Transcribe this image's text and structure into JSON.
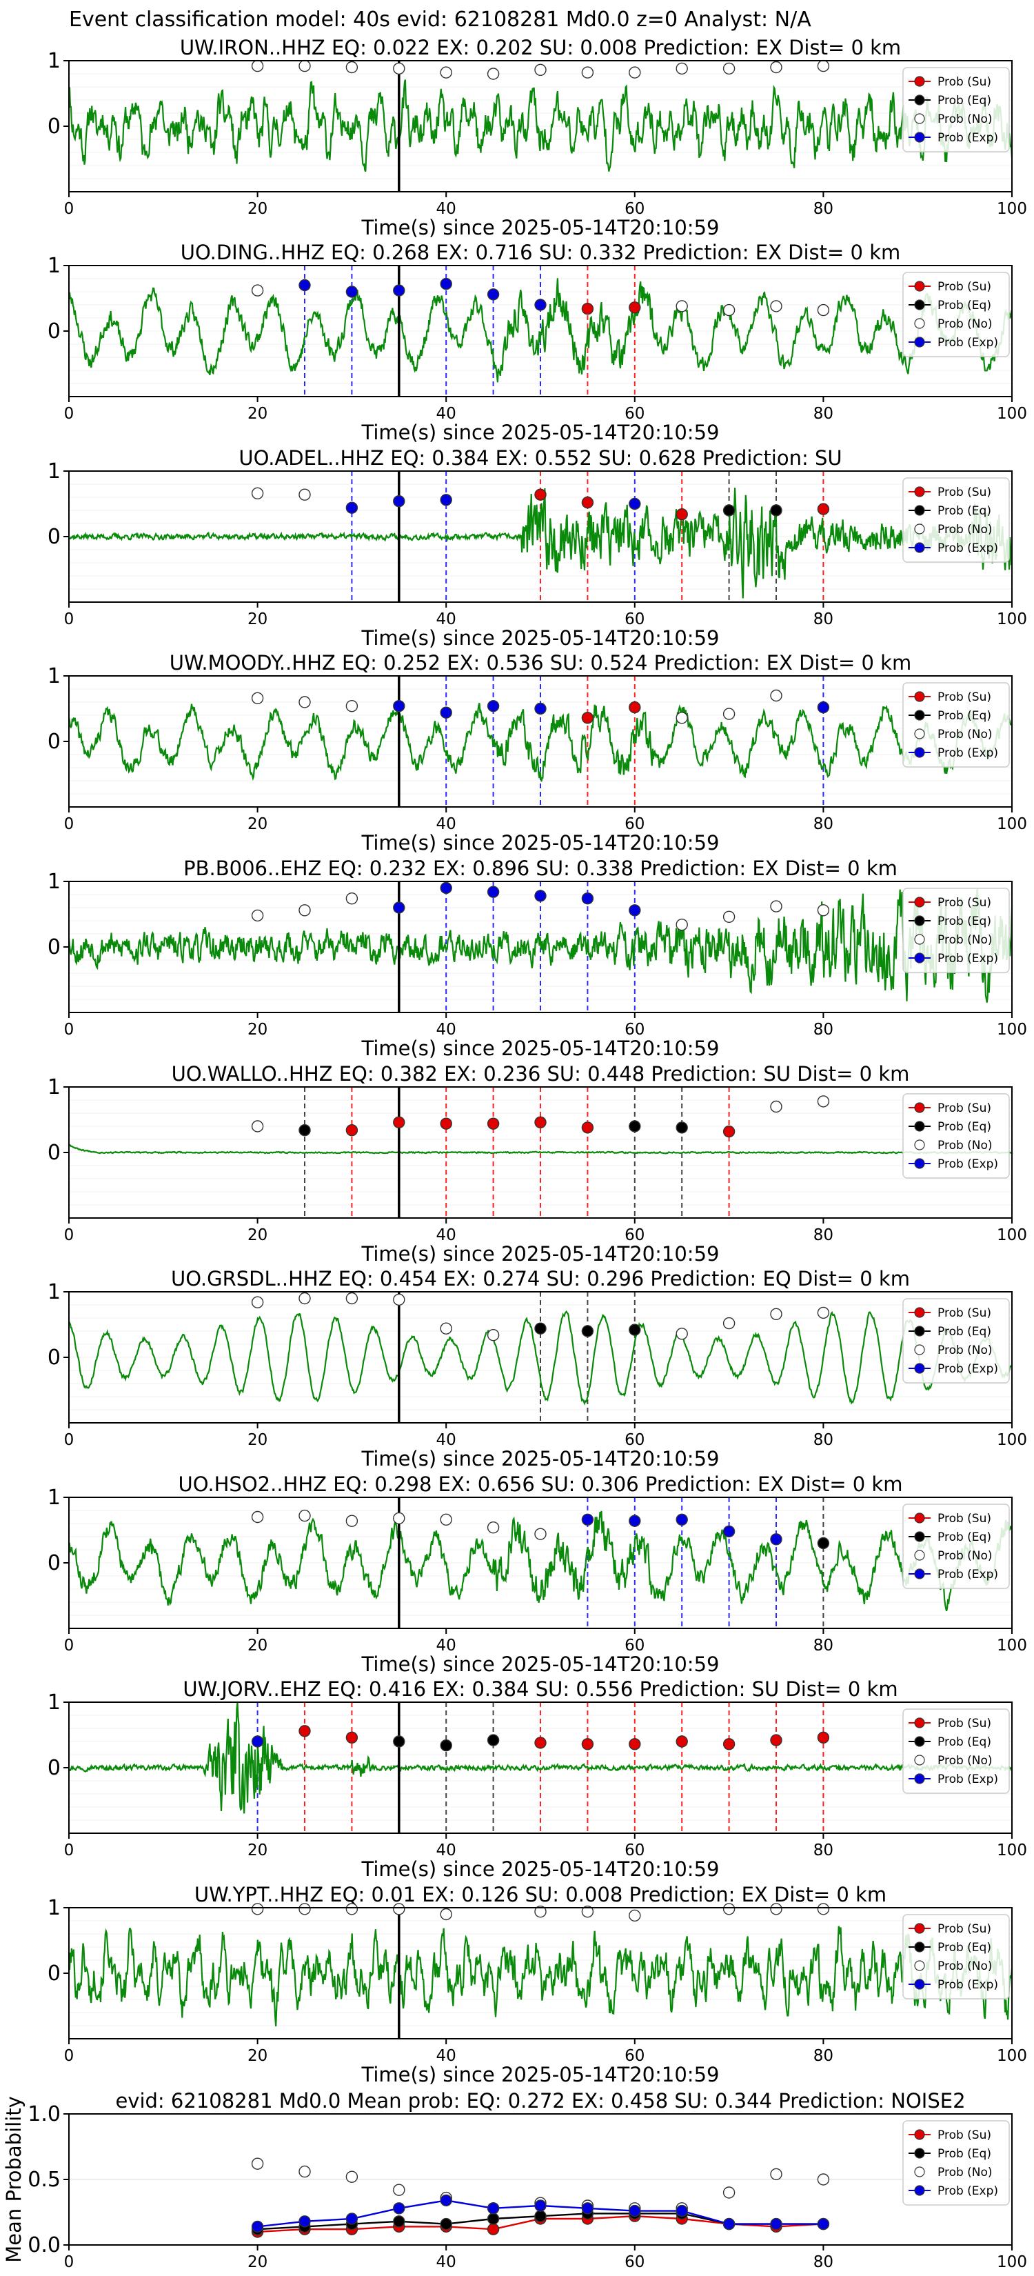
{
  "figure_title": "Event classification model: 40s evid: 62108281 Md0.0 z=0 Analyst: N/A",
  "legend_labels": [
    "Prob (Su)",
    "Prob (Eq)",
    "Prob (No)",
    "Prob (Exp)"
  ],
  "colors": {
    "su": "#e00000",
    "eq": "#000000",
    "no": "#ffffff",
    "exp": "#0000dd",
    "trace": "#0a8a0a"
  },
  "chart_data": [
    {
      "type": "line",
      "station": "UW.IRON..HHZ",
      "title": "UW.IRON..HHZ   EQ: 0.022  EX: 0.202  SU: 0.008   Prediction: EX    Dist= 0 km",
      "xlabel": "Time(s) since 2025-05-14T20:10:59",
      "xlim": [
        0,
        100
      ],
      "ylim": [
        -1,
        1
      ],
      "x_ticks": [
        0,
        20,
        40,
        60,
        80,
        100
      ],
      "y_ticks": [
        0,
        1
      ],
      "trace": {
        "amplitude": 0.72,
        "style": "broadband",
        "onset": 0,
        "seed": 11
      },
      "marker": 35,
      "probs": [
        {
          "t": 20,
          "c": "no",
          "p": 0.92
        },
        {
          "t": 25,
          "c": "no",
          "p": 0.92
        },
        {
          "t": 30,
          "c": "no",
          "p": 0.9
        },
        {
          "t": 35,
          "c": "no",
          "p": 0.88
        },
        {
          "t": 40,
          "c": "no",
          "p": 0.82
        },
        {
          "t": 45,
          "c": "no",
          "p": 0.8
        },
        {
          "t": 50,
          "c": "no",
          "p": 0.86
        },
        {
          "t": 55,
          "c": "no",
          "p": 0.82
        },
        {
          "t": 60,
          "c": "no",
          "p": 0.82
        },
        {
          "t": 65,
          "c": "no",
          "p": 0.88
        },
        {
          "t": 70,
          "c": "no",
          "p": 0.88
        },
        {
          "t": 75,
          "c": "no",
          "p": 0.9
        },
        {
          "t": 80,
          "c": "no",
          "p": 0.92
        }
      ]
    },
    {
      "type": "line",
      "station": "UO.DING..HHZ",
      "title": "UO.DING..HHZ   EQ: 0.268  EX: 0.716  SU: 0.332   Prediction: EX    Dist= 0 km",
      "xlabel": "Time(s) since 2025-05-14T20:10:59",
      "xlim": [
        0,
        100
      ],
      "ylim": [
        -1,
        1
      ],
      "x_ticks": [
        0,
        20,
        40,
        60,
        80,
        100
      ],
      "y_ticks": [
        0,
        1
      ],
      "trace": {
        "amplitude": 0.68,
        "style": "oscillating",
        "onset": 0,
        "seed": 23
      },
      "marker": 35,
      "probs": [
        {
          "t": 20,
          "c": "no",
          "p": 0.62
        },
        {
          "t": 25,
          "c": "exp",
          "p": 0.7
        },
        {
          "t": 30,
          "c": "exp",
          "p": 0.6
        },
        {
          "t": 35,
          "c": "exp",
          "p": 0.62
        },
        {
          "t": 40,
          "c": "exp",
          "p": 0.72
        },
        {
          "t": 45,
          "c": "exp",
          "p": 0.56
        },
        {
          "t": 50,
          "c": "exp",
          "p": 0.4
        },
        {
          "t": 55,
          "c": "su",
          "p": 0.34
        },
        {
          "t": 60,
          "c": "su",
          "p": 0.36
        },
        {
          "t": 65,
          "c": "no",
          "p": 0.38
        },
        {
          "t": 70,
          "c": "no",
          "p": 0.32
        },
        {
          "t": 75,
          "c": "no",
          "p": 0.38
        },
        {
          "t": 80,
          "c": "no",
          "p": 0.32
        }
      ]
    },
    {
      "type": "line",
      "station": "UO.ADEL..HHZ",
      "title": "UO.ADEL..HHZ   EQ: 0.384  EX: 0.552  SU: 0.628   Prediction: SU",
      "xlabel": "Time(s) since 2025-05-14T20:10:59",
      "xlim": [
        0,
        100
      ],
      "ylim": [
        -1,
        1
      ],
      "x_ticks": [
        0,
        20,
        40,
        60,
        80,
        100
      ],
      "y_ticks": [
        0,
        1
      ],
      "trace": {
        "amplitude": 0.9,
        "style": "event",
        "onset": 48,
        "seed": 37
      },
      "marker": 35,
      "probs": [
        {
          "t": 20,
          "c": "no",
          "p": 0.66
        },
        {
          "t": 25,
          "c": "no",
          "p": 0.64
        },
        {
          "t": 30,
          "c": "exp",
          "p": 0.44
        },
        {
          "t": 35,
          "c": "exp",
          "p": 0.54
        },
        {
          "t": 40,
          "c": "exp",
          "p": 0.56
        },
        {
          "t": 50,
          "c": "su",
          "p": 0.64
        },
        {
          "t": 55,
          "c": "su",
          "p": 0.52
        },
        {
          "t": 60,
          "c": "exp",
          "p": 0.5
        },
        {
          "t": 65,
          "c": "su",
          "p": 0.34
        },
        {
          "t": 70,
          "c": "eq",
          "p": 0.4
        },
        {
          "t": 75,
          "c": "eq",
          "p": 0.4
        },
        {
          "t": 80,
          "c": "su",
          "p": 0.42
        }
      ]
    },
    {
      "type": "line",
      "station": "UW.MOODY..HHZ",
      "title": "UW.MOODY..HHZ   EQ: 0.252  EX: 0.536  SU: 0.524   Prediction: EX    Dist= 0 km",
      "xlabel": "Time(s) since 2025-05-14T20:10:59",
      "xlim": [
        0,
        100
      ],
      "ylim": [
        -1,
        1
      ],
      "x_ticks": [
        0,
        20,
        40,
        60,
        80,
        100
      ],
      "y_ticks": [
        0,
        1
      ],
      "trace": {
        "amplitude": 0.6,
        "style": "oscillating",
        "onset": 0,
        "seed": 41
      },
      "marker": 35,
      "probs": [
        {
          "t": 20,
          "c": "no",
          "p": 0.66
        },
        {
          "t": 25,
          "c": "no",
          "p": 0.6
        },
        {
          "t": 30,
          "c": "no",
          "p": 0.54
        },
        {
          "t": 35,
          "c": "exp",
          "p": 0.54
        },
        {
          "t": 40,
          "c": "exp",
          "p": 0.44
        },
        {
          "t": 45,
          "c": "exp",
          "p": 0.54
        },
        {
          "t": 50,
          "c": "exp",
          "p": 0.5
        },
        {
          "t": 55,
          "c": "su",
          "p": 0.36
        },
        {
          "t": 60,
          "c": "su",
          "p": 0.52
        },
        {
          "t": 65,
          "c": "no",
          "p": 0.36
        },
        {
          "t": 70,
          "c": "no",
          "p": 0.42
        },
        {
          "t": 75,
          "c": "no",
          "p": 0.7
        },
        {
          "t": 80,
          "c": "exp",
          "p": 0.52
        }
      ]
    },
    {
      "type": "line",
      "station": "PB.B006..EHZ",
      "title": "PB.B006..EHZ   EQ: 0.232  EX: 0.896  SU: 0.338   Prediction: EX    Dist= 0 km",
      "xlabel": "Time(s) since 2025-05-14T20:10:59",
      "xlim": [
        0,
        100
      ],
      "ylim": [
        -1,
        1
      ],
      "x_ticks": [
        0,
        20,
        40,
        60,
        80,
        100
      ],
      "y_ticks": [
        0,
        1
      ],
      "trace": {
        "amplitude": 0.95,
        "style": "growing",
        "onset": 0,
        "seed": 53
      },
      "marker": 35,
      "probs": [
        {
          "t": 20,
          "c": "no",
          "p": 0.48
        },
        {
          "t": 25,
          "c": "no",
          "p": 0.56
        },
        {
          "t": 30,
          "c": "no",
          "p": 0.74
        },
        {
          "t": 35,
          "c": "exp",
          "p": 0.6
        },
        {
          "t": 40,
          "c": "exp",
          "p": 0.9
        },
        {
          "t": 45,
          "c": "exp",
          "p": 0.84
        },
        {
          "t": 50,
          "c": "exp",
          "p": 0.78
        },
        {
          "t": 55,
          "c": "exp",
          "p": 0.74
        },
        {
          "t": 60,
          "c": "exp",
          "p": 0.56
        },
        {
          "t": 65,
          "c": "no",
          "p": 0.34
        },
        {
          "t": 70,
          "c": "no",
          "p": 0.46
        },
        {
          "t": 75,
          "c": "no",
          "p": 0.62
        },
        {
          "t": 80,
          "c": "no",
          "p": 0.56
        }
      ]
    },
    {
      "type": "line",
      "station": "UO.WALLO..HHZ",
      "title": "UO.WALLO..HHZ   EQ: 0.382  EX: 0.236  SU: 0.448   Prediction: SU    Dist= 0 km",
      "xlabel": "Time(s) since 2025-05-14T20:10:59",
      "xlim": [
        0,
        100
      ],
      "ylim": [
        -1,
        1
      ],
      "x_ticks": [
        0,
        20,
        40,
        60,
        80,
        100
      ],
      "y_ticks": [
        0,
        1
      ],
      "trace": {
        "amplitude": 0.14,
        "style": "quiet_transient",
        "onset": 0,
        "seed": 67
      },
      "marker": 35,
      "probs": [
        {
          "t": 20,
          "c": "no",
          "p": 0.4
        },
        {
          "t": 25,
          "c": "eq",
          "p": 0.34
        },
        {
          "t": 30,
          "c": "su",
          "p": 0.34
        },
        {
          "t": 35,
          "c": "su",
          "p": 0.46
        },
        {
          "t": 40,
          "c": "su",
          "p": 0.44
        },
        {
          "t": 45,
          "c": "su",
          "p": 0.44
        },
        {
          "t": 50,
          "c": "su",
          "p": 0.46
        },
        {
          "t": 55,
          "c": "su",
          "p": 0.38
        },
        {
          "t": 60,
          "c": "eq",
          "p": 0.4
        },
        {
          "t": 65,
          "c": "eq",
          "p": 0.38
        },
        {
          "t": 70,
          "c": "su",
          "p": 0.32
        },
        {
          "t": 75,
          "c": "no",
          "p": 0.7
        },
        {
          "t": 80,
          "c": "no",
          "p": 0.78
        }
      ]
    },
    {
      "type": "line",
      "station": "UO.GRSDL..HHZ",
      "title": "UO.GRSDL..HHZ   EQ: 0.454  EX: 0.274  SU: 0.296   Prediction: EQ    Dist= 0 km",
      "xlabel": "Time(s) since 2025-05-14T20:10:59",
      "xlim": [
        0,
        100
      ],
      "ylim": [
        -1,
        1
      ],
      "x_ticks": [
        0,
        20,
        40,
        60,
        80,
        100
      ],
      "y_ticks": [
        0,
        1
      ],
      "trace": {
        "amplitude": 0.85,
        "style": "smooth",
        "onset": 0,
        "seed": 79
      },
      "marker": 35,
      "probs": [
        {
          "t": 20,
          "c": "no",
          "p": 0.84
        },
        {
          "t": 25,
          "c": "no",
          "p": 0.9
        },
        {
          "t": 30,
          "c": "no",
          "p": 0.9
        },
        {
          "t": 35,
          "c": "no",
          "p": 0.88
        },
        {
          "t": 40,
          "c": "no",
          "p": 0.44
        },
        {
          "t": 45,
          "c": "no",
          "p": 0.34
        },
        {
          "t": 50,
          "c": "eq",
          "p": 0.44
        },
        {
          "t": 55,
          "c": "eq",
          "p": 0.4
        },
        {
          "t": 60,
          "c": "eq",
          "p": 0.42
        },
        {
          "t": 65,
          "c": "no",
          "p": 0.36
        },
        {
          "t": 70,
          "c": "no",
          "p": 0.52
        },
        {
          "t": 75,
          "c": "no",
          "p": 0.66
        },
        {
          "t": 80,
          "c": "no",
          "p": 0.68
        }
      ]
    },
    {
      "type": "line",
      "station": "UO.HSO2..HHZ",
      "title": "UO.HSO2..HHZ   EQ: 0.298  EX: 0.656  SU: 0.306   Prediction: EX    Dist= 0 km",
      "xlabel": "Time(s) since 2025-05-14T20:10:59",
      "xlim": [
        0,
        100
      ],
      "ylim": [
        -1,
        1
      ],
      "x_ticks": [
        0,
        20,
        40,
        60,
        80,
        100
      ],
      "y_ticks": [
        0,
        1
      ],
      "trace": {
        "amplitude": 0.7,
        "style": "oscillating",
        "onset": 0,
        "seed": 83
      },
      "marker": 35,
      "probs": [
        {
          "t": 20,
          "c": "no",
          "p": 0.7
        },
        {
          "t": 25,
          "c": "no",
          "p": 0.72
        },
        {
          "t": 30,
          "c": "no",
          "p": 0.64
        },
        {
          "t": 35,
          "c": "no",
          "p": 0.68
        },
        {
          "t": 40,
          "c": "no",
          "p": 0.66
        },
        {
          "t": 45,
          "c": "no",
          "p": 0.54
        },
        {
          "t": 50,
          "c": "no",
          "p": 0.44
        },
        {
          "t": 55,
          "c": "exp",
          "p": 0.66
        },
        {
          "t": 60,
          "c": "exp",
          "p": 0.64
        },
        {
          "t": 65,
          "c": "exp",
          "p": 0.66
        },
        {
          "t": 70,
          "c": "exp",
          "p": 0.48
        },
        {
          "t": 75,
          "c": "exp",
          "p": 0.36
        },
        {
          "t": 80,
          "c": "eq",
          "p": 0.3
        }
      ]
    },
    {
      "type": "line",
      "station": "UW.JORV..EHZ",
      "title": "UW.JORV..EHZ   EQ: 0.416  EX: 0.384  SU: 0.556   Prediction: SU    Dist= 0 km",
      "xlabel": "Time(s) since 2025-05-14T20:10:59",
      "xlim": [
        0,
        100
      ],
      "ylim": [
        -1,
        1
      ],
      "x_ticks": [
        0,
        20,
        40,
        60,
        80,
        100
      ],
      "y_ticks": [
        0,
        1
      ],
      "trace": {
        "amplitude": 0.9,
        "style": "burst",
        "onset": 14,
        "seed": 97
      },
      "marker": 35,
      "probs": [
        {
          "t": 20,
          "c": "exp",
          "p": 0.4
        },
        {
          "t": 25,
          "c": "su",
          "p": 0.56
        },
        {
          "t": 30,
          "c": "su",
          "p": 0.46
        },
        {
          "t": 35,
          "c": "eq",
          "p": 0.4
        },
        {
          "t": 40,
          "c": "eq",
          "p": 0.34
        },
        {
          "t": 45,
          "c": "eq",
          "p": 0.42
        },
        {
          "t": 50,
          "c": "su",
          "p": 0.38
        },
        {
          "t": 55,
          "c": "su",
          "p": 0.36
        },
        {
          "t": 60,
          "c": "su",
          "p": 0.36
        },
        {
          "t": 65,
          "c": "su",
          "p": 0.4
        },
        {
          "t": 70,
          "c": "su",
          "p": 0.36
        },
        {
          "t": 75,
          "c": "su",
          "p": 0.42
        },
        {
          "t": 80,
          "c": "su",
          "p": 0.46
        }
      ]
    },
    {
      "type": "line",
      "station": "UW.YPT..HHZ",
      "title": "UW.YPT..HHZ   EQ: 0.01  EX: 0.126  SU: 0.008   Prediction: EX    Dist= 0 km",
      "xlabel": "Time(s) since 2025-05-14T20:10:59",
      "xlim": [
        0,
        100
      ],
      "ylim": [
        -1,
        1
      ],
      "x_ticks": [
        0,
        20,
        40,
        60,
        80,
        100
      ],
      "y_ticks": [
        0,
        1
      ],
      "trace": {
        "amplitude": 0.8,
        "style": "broadband",
        "onset": 0,
        "seed": 101
      },
      "marker": 35,
      "probs": [
        {
          "t": 20,
          "c": "no",
          "p": 0.98
        },
        {
          "t": 25,
          "c": "no",
          "p": 0.98
        },
        {
          "t": 30,
          "c": "no",
          "p": 0.98
        },
        {
          "t": 35,
          "c": "no",
          "p": 0.98
        },
        {
          "t": 40,
          "c": "no",
          "p": 0.9
        },
        {
          "t": 50,
          "c": "no",
          "p": 0.94
        },
        {
          "t": 55,
          "c": "no",
          "p": 0.94
        },
        {
          "t": 60,
          "c": "no",
          "p": 0.88
        },
        {
          "t": 70,
          "c": "no",
          "p": 0.98
        },
        {
          "t": 75,
          "c": "no",
          "p": 0.98
        },
        {
          "t": 80,
          "c": "no",
          "p": 0.98
        }
      ]
    },
    {
      "type": "line",
      "station": "mean",
      "title": "evid: 62108281  Md0.0   Mean prob:   EQ: 0.272  EX: 0.458  SU: 0.344   Prediction: NOISE2",
      "ylabel": "Mean Probability",
      "xlim": [
        0,
        100
      ],
      "ylim": [
        0,
        1
      ],
      "x_ticks": [
        0,
        20,
        40,
        60,
        80,
        100
      ],
      "y_ticks": [
        0.0,
        0.5,
        1.0
      ],
      "y_tick_labels": [
        "0.0",
        "0.5",
        "1.0"
      ],
      "x": [
        20,
        25,
        30,
        35,
        40,
        45,
        50,
        55,
        60,
        65,
        70,
        75,
        80
      ],
      "series": [
        {
          "name": "Prob (Su)",
          "c": "su",
          "values": [
            0.1,
            0.12,
            0.12,
            0.14,
            0.14,
            0.12,
            0.2,
            0.2,
            0.22,
            0.2,
            0.16,
            0.14,
            0.16
          ]
        },
        {
          "name": "Prob (Eq)",
          "c": "eq",
          "values": [
            0.12,
            0.14,
            0.16,
            0.18,
            0.16,
            0.2,
            0.22,
            0.24,
            0.24,
            0.24,
            0.16,
            0.16,
            0.16
          ]
        },
        {
          "name": "Prob (No)",
          "c": "no",
          "values": [
            0.62,
            0.56,
            0.52,
            0.42,
            0.36,
            0.28,
            0.32,
            0.3,
            0.28,
            0.28,
            0.4,
            0.54,
            0.5
          ]
        },
        {
          "name": "Prob (Exp)",
          "c": "exp",
          "values": [
            0.14,
            0.18,
            0.2,
            0.28,
            0.34,
            0.28,
            0.3,
            0.28,
            0.26,
            0.26,
            0.16,
            0.16,
            0.16
          ]
        }
      ]
    }
  ]
}
